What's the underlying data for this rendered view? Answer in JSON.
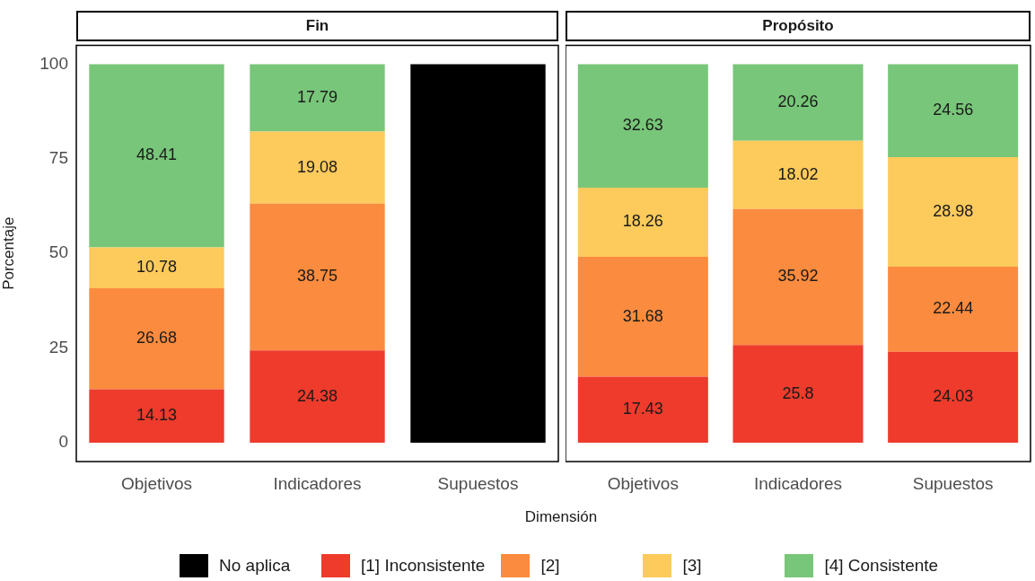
{
  "chart_data": [
    {
      "type": "bar",
      "title": "Fin",
      "xlabel": "Dimensión",
      "ylabel": "Porcentaje",
      "stacked": true,
      "legend": "bottom",
      "grid": false,
      "categories": [
        "Objetivos",
        "Indicadores",
        "Supuestos"
      ],
      "ylim": [
        -5,
        105
      ],
      "yticks": [
        0,
        25,
        50,
        75,
        100
      ],
      "series": [
        {
          "name": "No aplica",
          "color": "#000000",
          "values": [
            0,
            0,
            100
          ],
          "value_labels": [
            null,
            null,
            null
          ]
        },
        {
          "name": "[1] Inconsistente",
          "color": "#ee3b2c",
          "values": [
            14.13,
            24.38,
            0
          ],
          "value_labels": [
            "14.13",
            "24.38",
            null
          ]
        },
        {
          "name": "[2]",
          "color": "#fb8b3e",
          "values": [
            26.68,
            38.75,
            0
          ],
          "value_labels": [
            "26.68",
            "38.75",
            null
          ]
        },
        {
          "name": "[3]",
          "color": "#fdca5c",
          "values": [
            10.78,
            19.08,
            0
          ],
          "value_labels": [
            "10.78",
            "19.08",
            null
          ]
        },
        {
          "name": "[4] Consistente",
          "color": "#78c679",
          "values": [
            48.41,
            17.79,
            0
          ],
          "value_labels": [
            "48.41",
            "17.79",
            null
          ]
        }
      ]
    },
    {
      "type": "bar",
      "title": "Propósito",
      "stacked": true,
      "legend": false,
      "grid": false,
      "tick_labels": "x",
      "categories": [
        "Objetivos",
        "Indicadores",
        "Supuestos"
      ],
      "ylim": [
        -5,
        105
      ],
      "yticks": [
        0,
        25,
        50,
        75,
        100
      ],
      "series": [
        {
          "color": "#ee3b2c",
          "values": [
            17.43,
            25.8,
            24.03
          ],
          "value_labels": [
            "17.43",
            "25.8",
            "24.03"
          ]
        },
        {
          "color": "#fb8b3e",
          "values": [
            31.68,
            35.92,
            22.44
          ],
          "value_labels": [
            "31.68",
            "35.92",
            "22.44"
          ]
        },
        {
          "color": "#fdca5c",
          "values": [
            18.26,
            18.02,
            28.98
          ],
          "value_labels": [
            "18.26",
            "18.02",
            "28.98"
          ]
        },
        {
          "color": "#78c679",
          "values": [
            32.63,
            20.26,
            24.56
          ],
          "value_labels": [
            "32.63",
            "20.26",
            "24.56"
          ]
        }
      ]
    }
  ]
}
